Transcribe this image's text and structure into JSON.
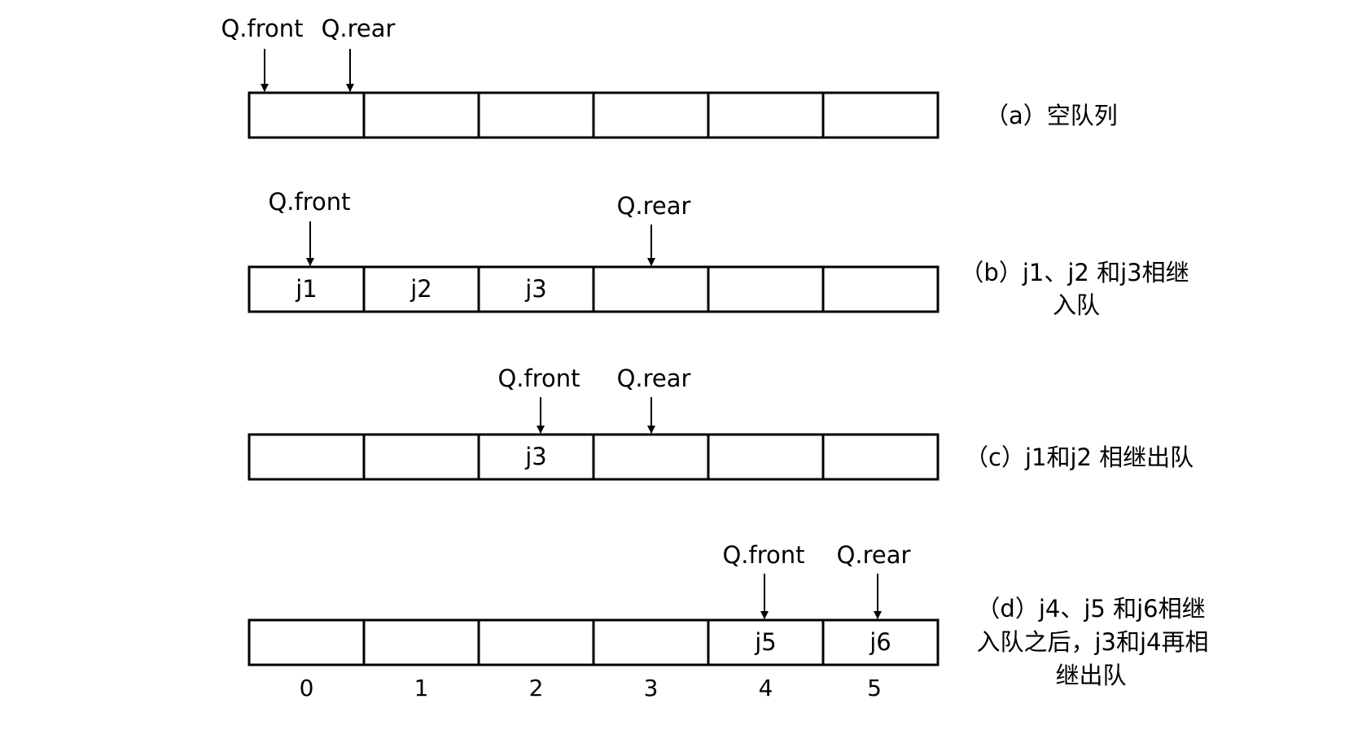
{
  "rows": [
    {
      "id": "a",
      "cells": [
        "",
        "",
        "",
        "",
        "",
        ""
      ],
      "front_label": "Q.front",
      "rear_label": "Q.rear",
      "front_index": 0,
      "rear_index": 0,
      "caption": [
        "（a）空队列"
      ]
    },
    {
      "id": "b",
      "cells": [
        "j1",
        "j2",
        "j3",
        "",
        "",
        ""
      ],
      "front_label": "Q.front",
      "rear_label": "Q.rear",
      "front_index": 0,
      "rear_index": 3,
      "caption": [
        "（b）j1、j2 和j3相继",
        "入队"
      ]
    },
    {
      "id": "c",
      "cells": [
        "",
        "",
        "j3",
        "",
        "",
        ""
      ],
      "front_label": "Q.front",
      "rear_label": "Q.rear",
      "front_index": 2,
      "rear_index": 3,
      "caption": [
        "（c）j1和j2 相继出队"
      ]
    },
    {
      "id": "d",
      "cells": [
        "",
        "",
        "",
        "",
        "j5",
        "j6"
      ],
      "front_label": "Q.front",
      "rear_label": "Q.rear",
      "front_index": 4,
      "rear_index": 5,
      "caption": [
        "（d）j4、j5 和j6相继",
        "入队之后，j3和j4再相",
        "继出队"
      ]
    }
  ],
  "indices": [
    "0",
    "1",
    "2",
    "3",
    "4",
    "5"
  ],
  "colors": {
    "stroke": "#000000",
    "background": "#ffffff"
  }
}
